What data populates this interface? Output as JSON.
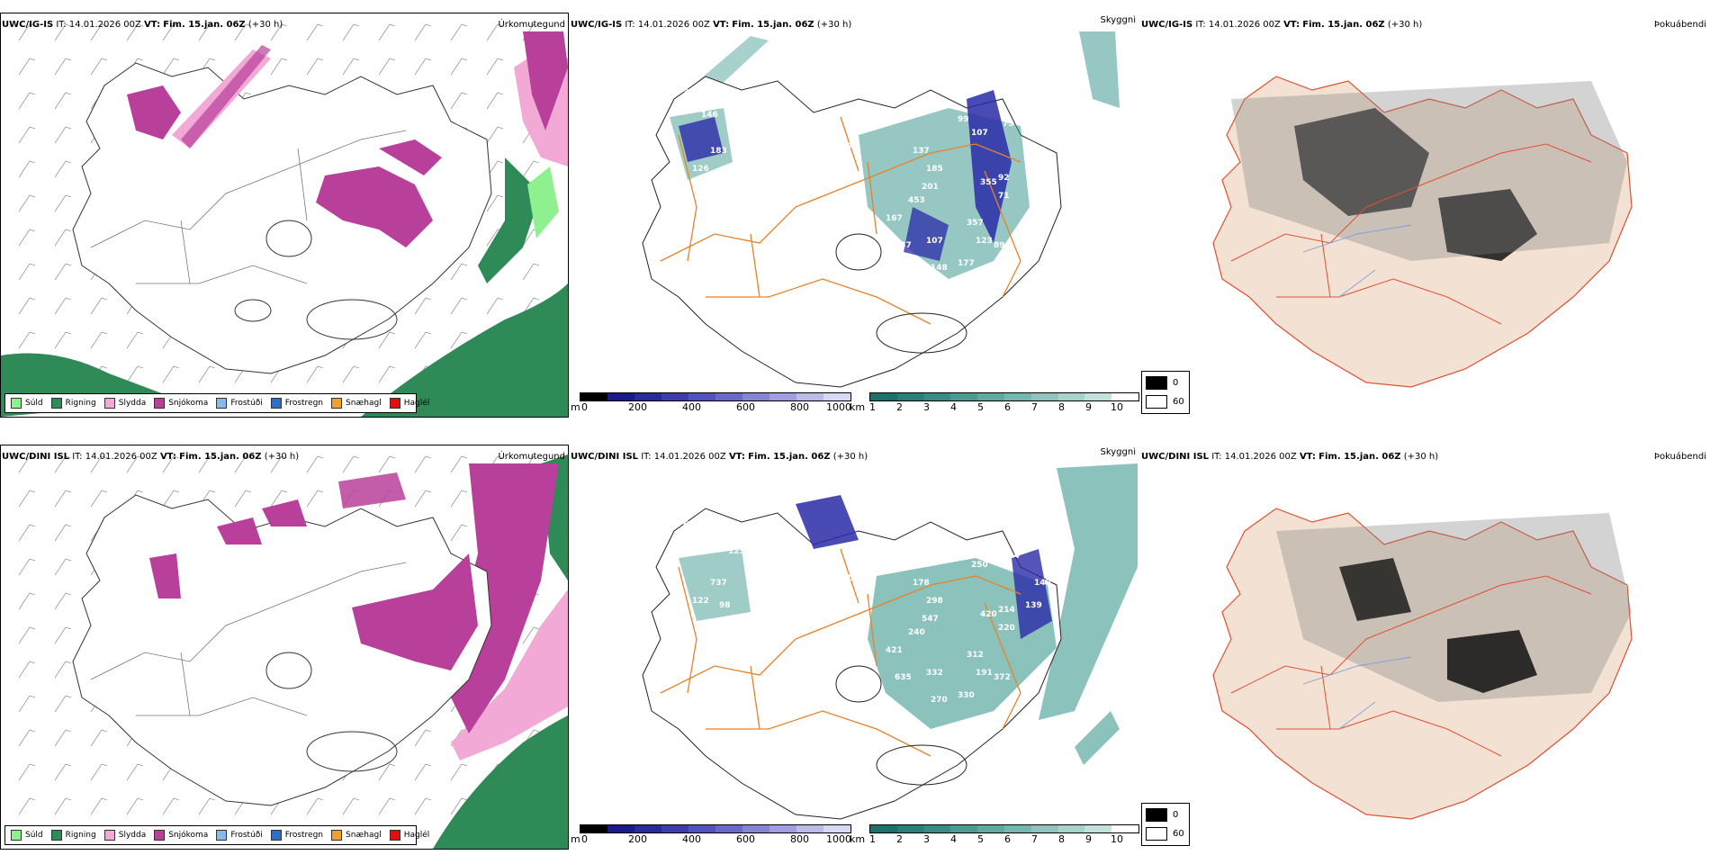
{
  "rows": [
    {
      "model": "UWC/IG-IS",
      "it_label": "IT:",
      "it_value": "14.01.2026 00Z",
      "vt_label": "VT:",
      "vt_value": "Fim. 15.jan. 06Z",
      "lead": "(+30 h)",
      "visibility_numbers": [
        "378",
        "146",
        "337",
        "183",
        "126",
        "93",
        "69",
        "90",
        "99",
        "107",
        "137",
        "185",
        "201",
        "453",
        "355",
        "92",
        "71",
        "167",
        "357",
        "137",
        "107",
        "123",
        "148",
        "177",
        "89",
        "73",
        "82",
        "87"
      ]
    },
    {
      "model": "UWC/DINI ISL",
      "it_label": "IT:",
      "it_value": "14.01.2026 00Z",
      "vt_label": "VT:",
      "vt_value": "Fim. 15.jan. 06Z",
      "lead": "(+30 h)",
      "visibility_numbers": [
        "646",
        "213",
        "125",
        "737",
        "122",
        "98",
        "112",
        "114",
        "166",
        "250",
        "178",
        "298",
        "547",
        "240",
        "420",
        "214",
        "220",
        "421",
        "312",
        "635",
        "332",
        "191",
        "270",
        "330",
        "372",
        "124",
        "139",
        "149"
      ]
    }
  ],
  "panel_titles": {
    "precip_type": "Úrkomutegund",
    "visibility": "Skyggni",
    "fog": "Þokuábendi"
  },
  "precip_legend": [
    {
      "label": "Súld",
      "color": "#8ef08e"
    },
    {
      "label": "Rigning",
      "color": "#2e8b57"
    },
    {
      "label": "Slydda",
      "color": "#f2a9d6"
    },
    {
      "label": "Snjókoma",
      "color": "#b8409a"
    },
    {
      "label": "Frostúði",
      "color": "#87b8f0"
    },
    {
      "label": "Frostregn",
      "color": "#2f6fc0"
    },
    {
      "label": "Snæhagl",
      "color": "#f0a030"
    },
    {
      "label": "Haglél",
      "color": "#e01010"
    }
  ],
  "height_colorbar": {
    "unit": "m",
    "ticks": [
      "0",
      "200",
      "400",
      "600",
      "800",
      "1000"
    ],
    "colors": [
      "#000000",
      "#1a1a8a",
      "#2a2aa0",
      "#3d3db0",
      "#5252bb",
      "#6a6ac5",
      "#8585d0",
      "#a0a0dc",
      "#bcbce8",
      "#d8d8f2"
    ]
  },
  "visibility_colorbar": {
    "unit": "km",
    "ticks": [
      "1",
      "2",
      "3",
      "4",
      "5",
      "6",
      "7",
      "8",
      "9",
      "10"
    ],
    "colors": [
      "#1f6f6a",
      "#2a7f78",
      "#3a8c85",
      "#4d9a93",
      "#62a8a1",
      "#78b6b0",
      "#90c4be",
      "#a8d2cd",
      "#c2e0dc",
      "#ffffff"
    ]
  },
  "fog_legend": [
    {
      "label": "0",
      "color": "#000000"
    },
    {
      "label": "60",
      "color": "#ffffff"
    }
  ],
  "colors": {
    "snow": "#b8409a",
    "sleet": "#f2a9d6",
    "rain": "#2e8b57",
    "drizzle": "#8ef08e",
    "teal": "#3f9990",
    "navy": "#2a2aa8",
    "orange_road": "#e8822a",
    "land_fog": "#f3e2d3"
  }
}
